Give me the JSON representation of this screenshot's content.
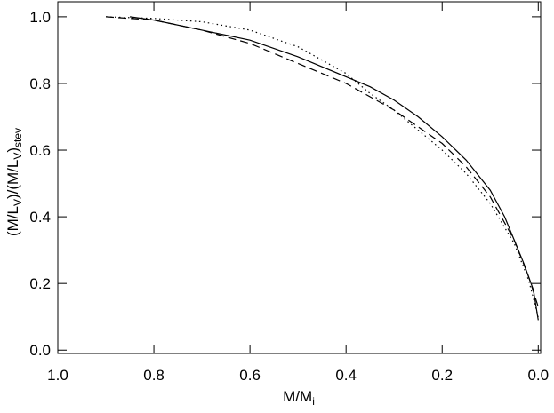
{
  "chart_data": {
    "type": "line",
    "xlabel": [
      "M/M",
      "i"
    ],
    "ylabel": [
      "(M/L",
      "V",
      ")/(M/L",
      "V",
      ")",
      "stev"
    ],
    "xlim": [
      1.0,
      -0.005
    ],
    "ylim": [
      -0.01,
      1.045
    ],
    "xticks": [
      {
        "value": 1,
        "label": "1.0"
      },
      0.8,
      0.6,
      0.4,
      0.2,
      {
        "value": 0,
        "label": "0.0"
      }
    ],
    "yticks": [
      {
        "value": 0,
        "label": "0.0"
      },
      0.2,
      0.4,
      0.6,
      0.8,
      {
        "value": 1,
        "label": "1.0"
      }
    ],
    "series": [
      {
        "color": "#000000",
        "dash": "solid",
        "x": [
          0.85,
          0.8,
          0.7,
          0.6,
          0.5,
          0.4,
          0.35,
          0.3,
          0.25,
          0.2,
          0.15,
          0.1,
          0.07,
          0.05,
          0.03,
          0.01,
          0.0
        ],
        "values": [
          1.0,
          0.99,
          0.96,
          0.93,
          0.88,
          0.82,
          0.79,
          0.75,
          0.7,
          0.64,
          0.57,
          0.48,
          0.4,
          0.33,
          0.26,
          0.18,
          0.09
        ]
      },
      {
        "color": "#000000",
        "dash": "dashed",
        "x": [
          0.9,
          0.8,
          0.7,
          0.6,
          0.5,
          0.4,
          0.3,
          0.2,
          0.15,
          0.1,
          0.05,
          0.02,
          0.0
        ],
        "values": [
          1.0,
          0.99,
          0.96,
          0.92,
          0.86,
          0.8,
          0.72,
          0.62,
          0.55,
          0.46,
          0.33,
          0.22,
          0.13
        ]
      },
      {
        "color": "#000000",
        "dash": "dotted",
        "x": [
          0.9,
          0.8,
          0.7,
          0.6,
          0.5,
          0.45,
          0.4,
          0.35,
          0.3,
          0.2,
          0.15,
          0.1,
          0.05,
          0.02,
          0.0
        ],
        "values": [
          1.0,
          0.995,
          0.985,
          0.96,
          0.91,
          0.87,
          0.83,
          0.77,
          0.72,
          0.6,
          0.53,
          0.44,
          0.32,
          0.21,
          0.1
        ]
      }
    ]
  }
}
